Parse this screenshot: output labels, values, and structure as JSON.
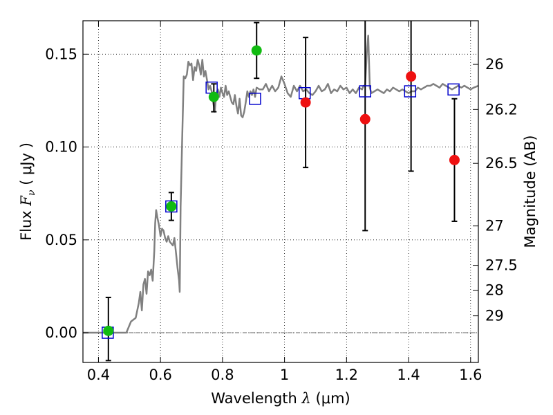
{
  "chart_data": {
    "type": "scatter",
    "title": "",
    "xlabel": {
      "text": "Wavelength",
      "symbol": "λ",
      "unit": "(μm)"
    },
    "ylabel": {
      "text": "Flux",
      "symbol": "F",
      "subscript": "ν",
      "unit": "μJy"
    },
    "y2label": "Magnitude (AB)",
    "xlim": [
      0.35,
      1.625
    ],
    "ylim": [
      -0.016,
      0.168
    ],
    "grid": true,
    "x_ticks": [
      0.4,
      0.6,
      0.8,
      1.0,
      1.2,
      1.4,
      1.6
    ],
    "x_tick_labels": [
      "0.4",
      "0.6",
      "0.8",
      "1",
      "1.2",
      "1.4",
      "1.6"
    ],
    "y_ticks": [
      0.0,
      0.05,
      0.1,
      0.15
    ],
    "y_tick_labels": [
      "0.00",
      "0.05",
      "0.10",
      "0.15"
    ],
    "y2_ticks": [
      {
        "label": "26",
        "flux": 0.1445
      },
      {
        "label": "26.2",
        "flux": 0.1202
      },
      {
        "label": "26.5",
        "flux": 0.0912
      },
      {
        "label": "27",
        "flux": 0.0575
      },
      {
        "label": "27.5",
        "flux": 0.0363
      },
      {
        "label": "28",
        "flux": 0.0229
      },
      {
        "label": "29",
        "flux": 0.0091
      }
    ],
    "zero_line": 0,
    "colors": {
      "model": "#808080",
      "model_photometry": "#0000cc",
      "detection": "#11bb11",
      "upper": "#ee1111",
      "errorbar": "#000000",
      "zero_line": "#606060"
    },
    "model_spectrum": [
      [
        0.35,
        0.0
      ],
      [
        0.49,
        0.0
      ],
      [
        0.505,
        0.006
      ],
      [
        0.52,
        0.008
      ],
      [
        0.53,
        0.016
      ],
      [
        0.535,
        0.022
      ],
      [
        0.54,
        0.012
      ],
      [
        0.545,
        0.026
      ],
      [
        0.55,
        0.029
      ],
      [
        0.555,
        0.021
      ],
      [
        0.56,
        0.033
      ],
      [
        0.565,
        0.031
      ],
      [
        0.57,
        0.034
      ],
      [
        0.575,
        0.028
      ],
      [
        0.58,
        0.044
      ],
      [
        0.583,
        0.059
      ],
      [
        0.586,
        0.066
      ],
      [
        0.59,
        0.062
      ],
      [
        0.595,
        0.058
      ],
      [
        0.6,
        0.052
      ],
      [
        0.605,
        0.056
      ],
      [
        0.61,
        0.055
      ],
      [
        0.615,
        0.051
      ],
      [
        0.62,
        0.049
      ],
      [
        0.625,
        0.052
      ],
      [
        0.63,
        0.049
      ],
      [
        0.64,
        0.047
      ],
      [
        0.645,
        0.051
      ],
      [
        0.65,
        0.043
      ],
      [
        0.655,
        0.035
      ],
      [
        0.66,
        0.028
      ],
      [
        0.662,
        0.022
      ],
      [
        0.665,
        0.068
      ],
      [
        0.67,
        0.105
      ],
      [
        0.675,
        0.138
      ],
      [
        0.68,
        0.137
      ],
      [
        0.685,
        0.139
      ],
      [
        0.69,
        0.146
      ],
      [
        0.695,
        0.144
      ],
      [
        0.7,
        0.145
      ],
      [
        0.705,
        0.136
      ],
      [
        0.71,
        0.143
      ],
      [
        0.715,
        0.141
      ],
      [
        0.72,
        0.147
      ],
      [
        0.725,
        0.144
      ],
      [
        0.73,
        0.139
      ],
      [
        0.735,
        0.147
      ],
      [
        0.74,
        0.138
      ],
      [
        0.745,
        0.141
      ],
      [
        0.75,
        0.136
      ],
      [
        0.755,
        0.131
      ],
      [
        0.76,
        0.133
      ],
      [
        0.765,
        0.13
      ],
      [
        0.77,
        0.124
      ],
      [
        0.775,
        0.119
      ],
      [
        0.78,
        0.129
      ],
      [
        0.785,
        0.131
      ],
      [
        0.79,
        0.127
      ],
      [
        0.795,
        0.132
      ],
      [
        0.8,
        0.129
      ],
      [
        0.805,
        0.127
      ],
      [
        0.81,
        0.133
      ],
      [
        0.815,
        0.128
      ],
      [
        0.82,
        0.13
      ],
      [
        0.825,
        0.127
      ],
      [
        0.83,
        0.124
      ],
      [
        0.835,
        0.123
      ],
      [
        0.84,
        0.128
      ],
      [
        0.845,
        0.122
      ],
      [
        0.85,
        0.118
      ],
      [
        0.855,
        0.126
      ],
      [
        0.86,
        0.117
      ],
      [
        0.865,
        0.116
      ],
      [
        0.87,
        0.119
      ],
      [
        0.875,
        0.124
      ],
      [
        0.88,
        0.13
      ],
      [
        0.885,
        0.127
      ],
      [
        0.89,
        0.13
      ],
      [
        0.895,
        0.128
      ],
      [
        0.9,
        0.131
      ],
      [
        0.905,
        0.127
      ],
      [
        0.91,
        0.132
      ],
      [
        0.92,
        0.131
      ],
      [
        0.93,
        0.131
      ],
      [
        0.94,
        0.134
      ],
      [
        0.95,
        0.13
      ],
      [
        0.96,
        0.133
      ],
      [
        0.97,
        0.13
      ],
      [
        0.98,
        0.132
      ],
      [
        0.99,
        0.138
      ],
      [
        1.0,
        0.134
      ],
      [
        1.01,
        0.129
      ],
      [
        1.02,
        0.127
      ],
      [
        1.03,
        0.133
      ],
      [
        1.04,
        0.13
      ],
      [
        1.05,
        0.133
      ],
      [
        1.06,
        0.13
      ],
      [
        1.07,
        0.131
      ],
      [
        1.08,
        0.129
      ],
      [
        1.09,
        0.128
      ],
      [
        1.1,
        0.13
      ],
      [
        1.11,
        0.133
      ],
      [
        1.12,
        0.13
      ],
      [
        1.13,
        0.131
      ],
      [
        1.14,
        0.134
      ],
      [
        1.15,
        0.129
      ],
      [
        1.16,
        0.131
      ],
      [
        1.17,
        0.13
      ],
      [
        1.18,
        0.133
      ],
      [
        1.19,
        0.131
      ],
      [
        1.2,
        0.132
      ],
      [
        1.21,
        0.129
      ],
      [
        1.22,
        0.131
      ],
      [
        1.23,
        0.129
      ],
      [
        1.24,
        0.132
      ],
      [
        1.25,
        0.131
      ],
      [
        1.255,
        0.133
      ],
      [
        1.26,
        0.133
      ],
      [
        1.265,
        0.15
      ],
      [
        1.27,
        0.16
      ],
      [
        1.275,
        0.132
      ],
      [
        1.28,
        0.129
      ],
      [
        1.29,
        0.13
      ],
      [
        1.3,
        0.131
      ],
      [
        1.31,
        0.13
      ],
      [
        1.32,
        0.129
      ],
      [
        1.33,
        0.131
      ],
      [
        1.34,
        0.13
      ],
      [
        1.35,
        0.132
      ],
      [
        1.36,
        0.131
      ],
      [
        1.37,
        0.13
      ],
      [
        1.38,
        0.131
      ],
      [
        1.39,
        0.13
      ],
      [
        1.4,
        0.129
      ],
      [
        1.41,
        0.13
      ],
      [
        1.42,
        0.13
      ],
      [
        1.43,
        0.132
      ],
      [
        1.44,
        0.131
      ],
      [
        1.45,
        0.132
      ],
      [
        1.46,
        0.133
      ],
      [
        1.47,
        0.133
      ],
      [
        1.48,
        0.134
      ],
      [
        1.49,
        0.133
      ],
      [
        1.5,
        0.132
      ],
      [
        1.51,
        0.134
      ],
      [
        1.52,
        0.133
      ],
      [
        1.53,
        0.132
      ],
      [
        1.54,
        0.131
      ],
      [
        1.55,
        0.132
      ],
      [
        1.56,
        0.133
      ],
      [
        1.57,
        0.132
      ],
      [
        1.58,
        0.133
      ],
      [
        1.59,
        0.132
      ],
      [
        1.6,
        0.131
      ],
      [
        1.61,
        0.132
      ],
      [
        1.625,
        0.133
      ]
    ],
    "model_points": [
      {
        "x": 0.43,
        "y": 0.0
      },
      {
        "x": 0.635,
        "y": 0.068
      },
      {
        "x": 0.765,
        "y": 0.132
      },
      {
        "x": 0.905,
        "y": 0.126
      },
      {
        "x": 1.065,
        "y": 0.129
      },
      {
        "x": 1.26,
        "y": 0.13
      },
      {
        "x": 1.405,
        "y": 0.13
      },
      {
        "x": 1.545,
        "y": 0.131
      }
    ],
    "observed": [
      {
        "x": 0.432,
        "y": 0.001,
        "err_lo": 0.016,
        "err_hi": 0.018,
        "group": "detection"
      },
      {
        "x": 0.635,
        "y": 0.068,
        "err_lo": 0.0075,
        "err_hi": 0.0075,
        "group": "detection"
      },
      {
        "x": 0.772,
        "y": 0.127,
        "err_lo": 0.008,
        "err_hi": 0.007,
        "group": "detection"
      },
      {
        "x": 0.91,
        "y": 0.152,
        "err_lo": 0.015,
        "err_hi": 0.015,
        "group": "detection"
      },
      {
        "x": 1.068,
        "y": 0.124,
        "err_lo": 0.035,
        "err_hi": 0.035,
        "group": "upper"
      },
      {
        "x": 1.26,
        "y": 0.115,
        "err_lo": 0.06,
        "err_hi": 0.06,
        "group": "upper"
      },
      {
        "x": 1.408,
        "y": 0.138,
        "err_lo": 0.051,
        "err_hi": 0.032,
        "group": "upper"
      },
      {
        "x": 1.548,
        "y": 0.093,
        "err_lo": 0.033,
        "err_hi": 0.033,
        "group": "upper"
      }
    ]
  }
}
